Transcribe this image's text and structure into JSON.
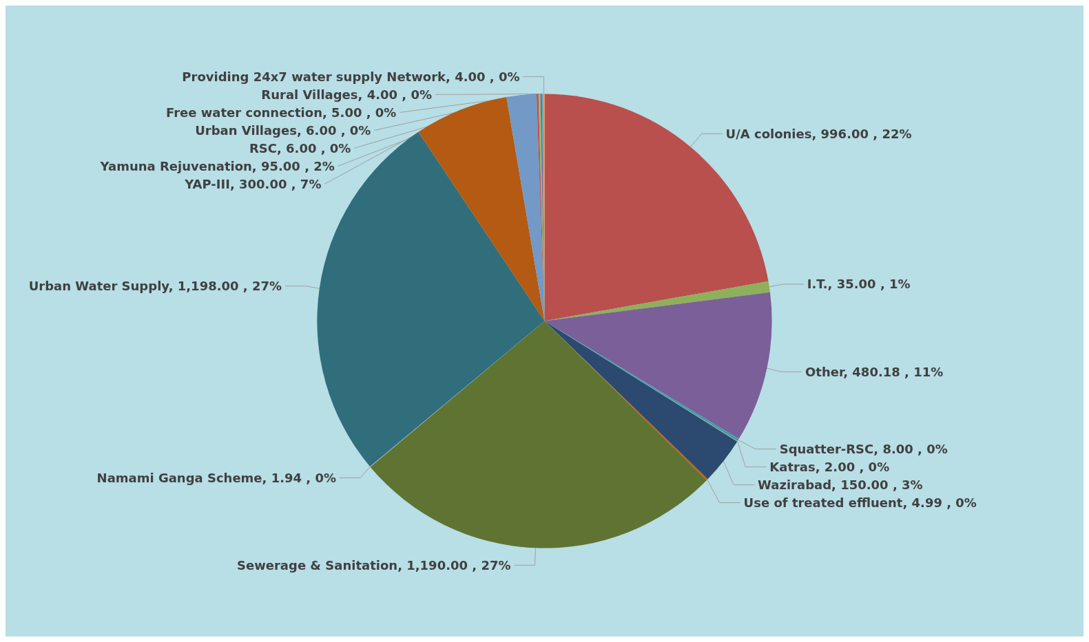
{
  "chart_data": {
    "type": "pie",
    "categories": [
      "U/A colonies",
      "I.T.",
      "Other",
      "Squatter-RSC",
      "Katras",
      "Wazirabad",
      "Use of treated effluent",
      "Sewerage & Sanitation",
      "Namami Ganga Scheme",
      "Urban Water Supply",
      "YAP-III",
      "Yamuna Rejuvenation",
      "RSC",
      "Urban Villages",
      "Free water connection",
      "Rural Villages",
      "Providing 24x7 water supply Network"
    ],
    "values": [
      996,
      35,
      480.18,
      8,
      2,
      150,
      4.99,
      1190,
      1.94,
      1198,
      300,
      95,
      6,
      6,
      5,
      4,
      4
    ],
    "value_labels": [
      "996.00 , 22%",
      "35.00 , 1%",
      "480.18 , 11%",
      "8.00 , 0%",
      "2.00 , 0%",
      "150.00 , 3%",
      "4.99 , 0%",
      "1,190.00 , 27%",
      "1.94 , 0%",
      "1,198.00 , 27%",
      "300.00 , 7%",
      "95.00 , 2%",
      "6.00 , 0%",
      "6.00 , 0%",
      "5.00 , 0%",
      "4.00 , 0%",
      "4.00 , 0%"
    ],
    "colors": [
      "#b9504d",
      "#8fb05a",
      "#7b5f98",
      "#3aa0b5",
      "#c8a070",
      "#2c4a70",
      "#c55a11",
      "#5f7432",
      "#a5a5a5",
      "#316e7c",
      "#b45a12",
      "#7399c6",
      "#c0504d",
      "#9bbb59",
      "#8064a2",
      "#4bacc6",
      "#f79646"
    ],
    "legend": false
  }
}
